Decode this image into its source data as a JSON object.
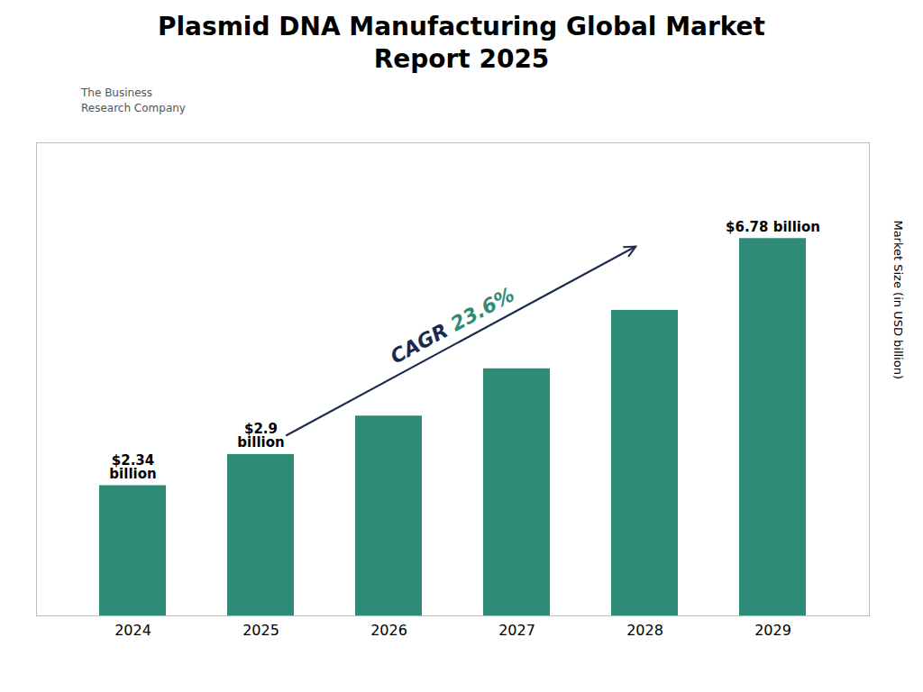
{
  "chart_data": {
    "type": "bar",
    "title": "Plasmid DNA Manufacturing Global Market\nReport 2025",
    "categories": [
      "2024",
      "2025",
      "2026",
      "2027",
      "2028",
      "2029"
    ],
    "values": [
      2.34,
      2.9,
      3.59,
      4.44,
      5.49,
      6.78
    ],
    "value_labels": [
      "$2.34\nbillion",
      "$2.9\nbillion",
      null,
      null,
      null,
      "$6.78 billion"
    ],
    "data_labels": true,
    "color": "#2e8b77",
    "ylabel": "Market Size (in USD billion)",
    "ylim": [
      0,
      8.5
    ],
    "yticks": [],
    "tick_labels": "x",
    "grid": false,
    "annotations": [
      {
        "text": "CAGR 23.6%"
      },
      {
        "text": "The Business\nResearch Company"
      }
    ]
  }
}
